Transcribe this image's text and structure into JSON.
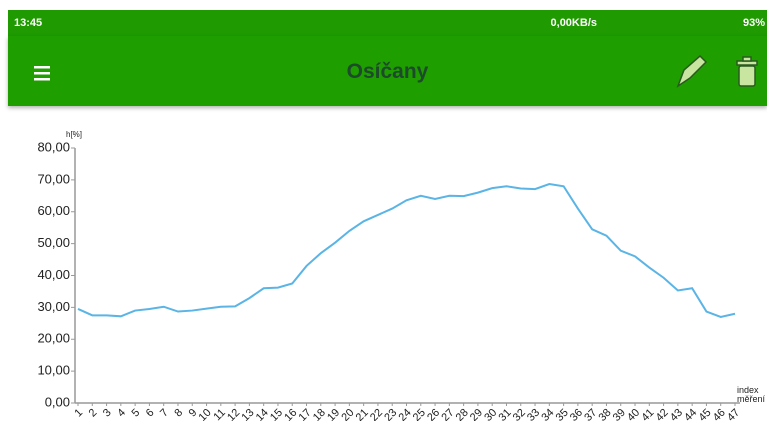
{
  "status_bar": {
    "time": "13:45",
    "network_speed": "0,00KB/s",
    "battery": "93%"
  },
  "app_bar": {
    "title": "Osíčany"
  },
  "chart_data": {
    "type": "line",
    "y_label": "h[%]",
    "x_label": "index měření",
    "color": "#5ab4e5",
    "categories": [
      "1",
      "2",
      "3",
      "4",
      "5",
      "6",
      "7",
      "8",
      "9",
      "10",
      "11",
      "12",
      "13",
      "14",
      "15",
      "16",
      "17",
      "18",
      "19",
      "20",
      "21",
      "22",
      "23",
      "24",
      "25",
      "26",
      "27",
      "28",
      "29",
      "30",
      "31",
      "32",
      "33",
      "34",
      "35",
      "36",
      "37",
      "38",
      "39",
      "40",
      "41",
      "42",
      "43",
      "44",
      "45",
      "46",
      "47"
    ],
    "values": [
      29.5,
      27.5,
      27.5,
      27.2,
      29,
      29.5,
      30.2,
      28.7,
      29,
      29.6,
      30.2,
      30.3,
      32.9,
      36,
      36.2,
      37.5,
      43,
      47,
      50.3,
      54,
      57,
      59,
      61,
      63.6,
      65,
      64,
      65,
      64.9,
      66,
      67.4,
      68,
      67.3,
      67.1,
      68.7,
      68,
      61,
      54.5,
      52.5,
      47.8,
      46,
      42.5,
      39.3,
      35.3,
      36,
      28.7,
      27,
      28
    ],
    "ylim": [
      0,
      80
    ],
    "yticks": [
      {
        "value": 0,
        "label": "0,00"
      },
      {
        "value": 10,
        "label": "10,00"
      },
      {
        "value": 20,
        "label": "20,00"
      },
      {
        "value": 30,
        "label": "30,00"
      },
      {
        "value": 40,
        "label": "40,00"
      },
      {
        "value": 50,
        "label": "50,00"
      },
      {
        "value": 60,
        "label": "60,00"
      },
      {
        "value": 70,
        "label": "70,00"
      },
      {
        "value": 80,
        "label": "80,00"
      }
    ]
  }
}
